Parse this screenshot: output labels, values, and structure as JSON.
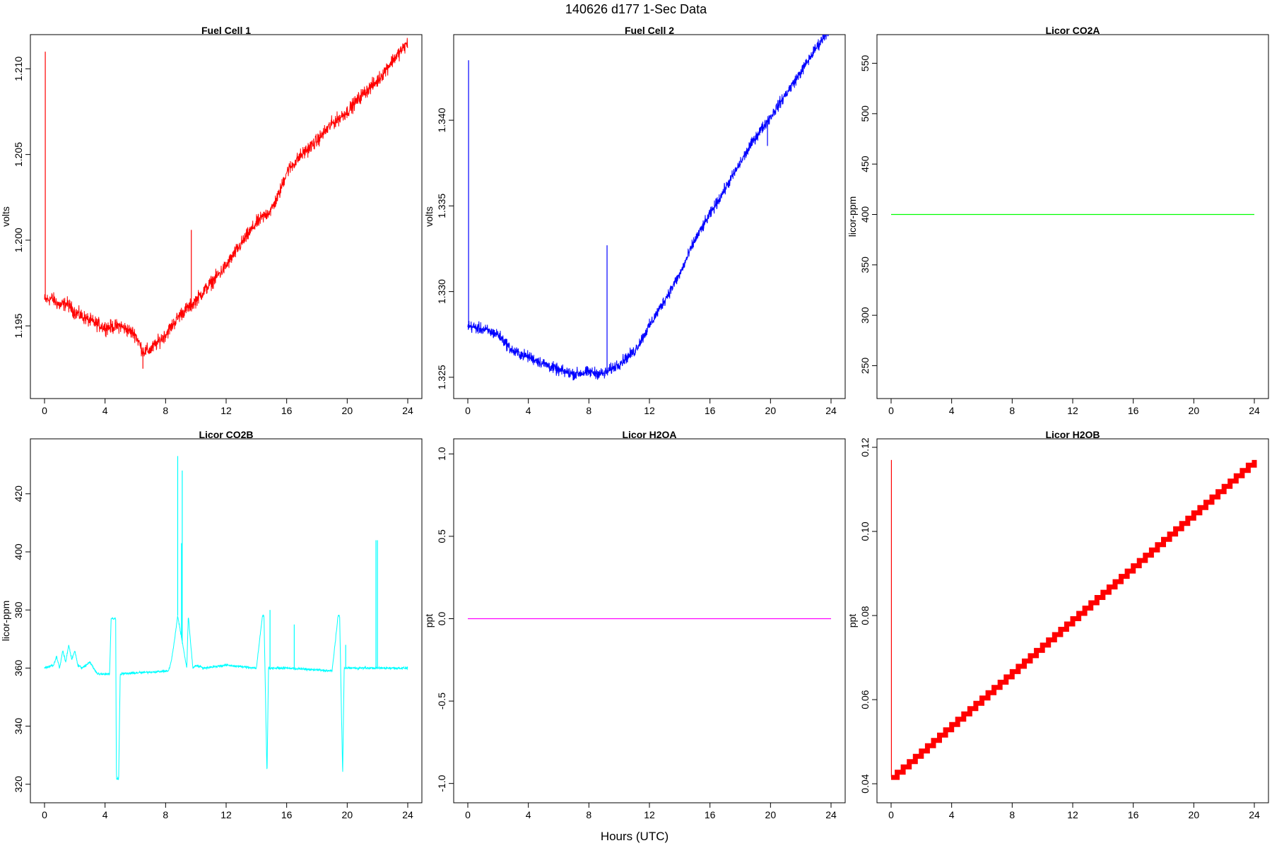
{
  "page_title": "140626   d177   1-Sec Data",
  "shared_xlabel": "Hours (UTC)",
  "chart_data": [
    {
      "type": "line",
      "title": "Fuel Cell 1",
      "xlabel": "",
      "ylabel": "volts",
      "xlim": [
        0,
        24
      ],
      "ylim": [
        1.1915,
        1.2115
      ],
      "xticks": [
        0,
        4,
        8,
        12,
        16,
        20,
        24
      ],
      "yticks": [
        1.195,
        1.2,
        1.205,
        1.21
      ],
      "ytick_labels": [
        "1.195",
        "1.200",
        "1.205",
        "1.210"
      ],
      "color": "#ff0000",
      "noise": 0.0006,
      "series": [
        {
          "x": [
            0,
            0.5,
            1,
            1.5,
            2,
            3,
            4,
            5,
            6,
            6.5,
            7,
            8,
            9,
            9.7,
            10,
            11,
            12,
            13,
            14,
            15,
            15.5,
            16,
            17,
            18,
            19,
            20,
            21,
            22,
            23,
            24
          ],
          "values": [
            1.1965,
            1.1966,
            1.1962,
            1.1963,
            1.1958,
            1.1953,
            1.1949,
            1.195,
            1.1945,
            1.1935,
            1.1936,
            1.1945,
            1.1957,
            1.1962,
            1.1965,
            1.1975,
            1.1985,
            1.1998,
            1.201,
            1.2018,
            1.2027,
            1.204,
            1.205,
            1.2058,
            1.2068,
            1.2075,
            1.2085,
            1.2093,
            1.2105,
            1.2115
          ]
        }
      ],
      "spikes": [
        [
          0.05,
          1.211
        ],
        [
          9.7,
          1.2006
        ],
        [
          13.7,
          1.2008
        ],
        [
          6.5,
          1.1925
        ]
      ]
    },
    {
      "type": "line",
      "title": "Fuel Cell 2",
      "xlabel": "",
      "ylabel": "volts",
      "xlim": [
        0,
        24
      ],
      "ylim": [
        1.3245,
        1.3445
      ],
      "xticks": [
        0,
        4,
        8,
        12,
        16,
        20,
        24
      ],
      "yticks": [
        1.325,
        1.33,
        1.335,
        1.34
      ],
      "ytick_labels": [
        "1.325",
        "1.330",
        "1.335",
        "1.340"
      ],
      "color": "#0000ff",
      "noise": 0.0005,
      "series": [
        {
          "x": [
            0,
            1,
            2,
            3,
            4,
            5,
            6,
            7,
            8,
            9,
            10,
            11,
            12,
            13,
            14,
            15,
            16,
            17,
            18,
            19,
            20,
            21,
            22,
            23,
            24
          ],
          "values": [
            1.328,
            1.3278,
            1.3275,
            1.3265,
            1.3262,
            1.3258,
            1.3254,
            1.3252,
            1.3253,
            1.3252,
            1.3258,
            1.3265,
            1.328,
            1.3295,
            1.331,
            1.333,
            1.3345,
            1.336,
            1.3375,
            1.339,
            1.3402,
            1.3415,
            1.3428,
            1.3442,
            1.3455
          ]
        }
      ],
      "spikes": [
        [
          0.05,
          1.3435
        ],
        [
          9.2,
          1.3327
        ],
        [
          19.8,
          1.3385
        ]
      ]
    },
    {
      "type": "line",
      "title": "Licor CO2A",
      "xlabel": "",
      "ylabel": "licor-ppm",
      "xlim": [
        0,
        24
      ],
      "ylim": [
        230,
        570
      ],
      "xticks": [
        0,
        4,
        8,
        12,
        16,
        20,
        24
      ],
      "yticks": [
        250,
        300,
        350,
        400,
        450,
        500,
        550
      ],
      "ytick_labels": [
        "250",
        "300",
        "350",
        "400",
        "450",
        "500",
        "550"
      ],
      "color": "#00ff00",
      "noise": 0,
      "series": [
        {
          "x": [
            0,
            24
          ],
          "values": [
            400,
            400
          ]
        }
      ],
      "spikes": []
    },
    {
      "type": "line",
      "title": "Licor CO2B",
      "xlabel": "",
      "ylabel": "licor-ppm",
      "xlim": [
        0,
        24
      ],
      "ylim": [
        318,
        436
      ],
      "xticks": [
        0,
        4,
        8,
        12,
        16,
        20,
        24
      ],
      "yticks": [
        320,
        340,
        360,
        380,
        400,
        420
      ],
      "ytick_labels": [
        "320",
        "340",
        "360",
        "380",
        "400",
        "420"
      ],
      "color": "#00ffff",
      "noise": 0.6,
      "series": [
        {
          "x": [
            0,
            0.6,
            0.8,
            1.0,
            1.2,
            1.4,
            1.6,
            1.8,
            2.0,
            2.2,
            2.5,
            3.0,
            3.5,
            4.3,
            4.4,
            4.7,
            4.75,
            4.9,
            5.0,
            8.2,
            8.4,
            8.6,
            8.8,
            9.0,
            9.2,
            9.4,
            9.5,
            9.8,
            10.0,
            10.5,
            12.0,
            14.0,
            14.4,
            14.5,
            14.7,
            14.8,
            16.0,
            19.0,
            19.4,
            19.5,
            19.7,
            19.8,
            22.0,
            24.0
          ],
          "values": [
            360,
            361,
            364,
            360,
            366,
            362,
            368,
            363,
            366,
            361,
            360,
            362,
            358,
            358,
            377,
            377,
            322,
            322,
            358,
            359,
            363,
            370,
            378,
            372,
            366,
            360,
            378,
            360,
            361,
            360,
            361,
            360,
            378,
            378,
            323,
            360,
            360,
            359,
            378,
            378,
            323,
            360,
            360,
            360
          ]
        }
      ],
      "spikes": [
        [
          8.8,
          433
        ],
        [
          9.1,
          428
        ],
        [
          9.05,
          403
        ],
        [
          14.9,
          380
        ],
        [
          16.5,
          375
        ],
        [
          19.9,
          368
        ],
        [
          21.9,
          404
        ],
        [
          22.0,
          404
        ]
      ]
    },
    {
      "type": "line",
      "title": "Licor H2OA",
      "xlabel": "",
      "ylabel": "ppt",
      "xlim": [
        0,
        24
      ],
      "ylim": [
        -1.04,
        1.04
      ],
      "xticks": [
        0,
        4,
        8,
        12,
        16,
        20,
        24
      ],
      "yticks": [
        -1.0,
        -0.5,
        0.0,
        0.5,
        1.0
      ],
      "ytick_labels": [
        "-1.0",
        "-0.5",
        "0.0",
        "0.5",
        "1.0"
      ],
      "color": "#ff00ff",
      "noise": 0,
      "series": [
        {
          "x": [
            0,
            24
          ],
          "values": [
            0,
            0
          ]
        }
      ],
      "spikes": []
    },
    {
      "type": "line",
      "title": "Licor H2OB",
      "xlabel": "",
      "ylabel": "ppt",
      "xlim": [
        0,
        24
      ],
      "ylim": [
        0.0385,
        0.12
      ],
      "xticks": [
        0,
        4,
        8,
        12,
        16,
        20,
        24
      ],
      "yticks": [
        0.04,
        0.06,
        0.08,
        0.1,
        0.12
      ],
      "ytick_labels": [
        "0.04",
        "0.06",
        "0.08",
        "0.10",
        "0.12"
      ],
      "color": "#ff0000",
      "noise": 0,
      "stepped": true,
      "series": [
        {
          "x": [
            0,
            24
          ],
          "values": [
            0.0415,
            0.117
          ]
        }
      ],
      "spikes": [
        [
          0.02,
          0.117
        ]
      ]
    }
  ]
}
